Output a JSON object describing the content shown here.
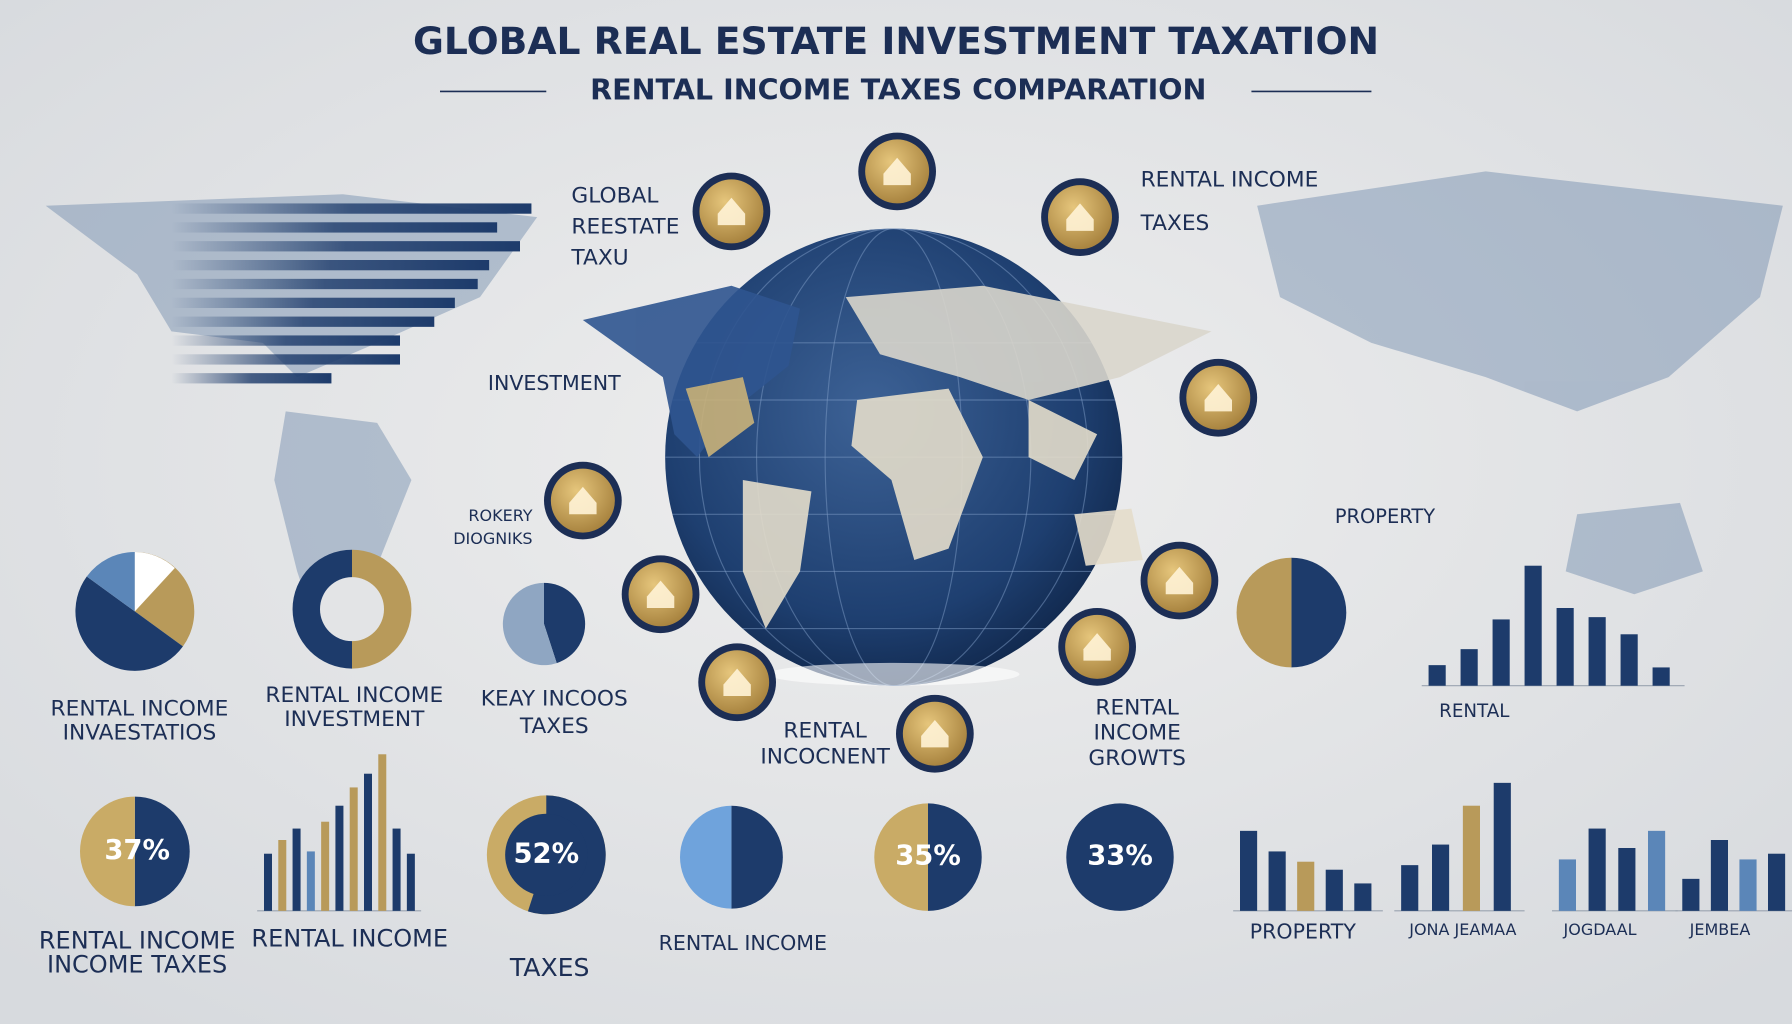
{
  "header": {
    "title": "GLOBAL REAL ESTATE INVESTMENT TAXATION",
    "subtitle": "RENTAL INCOME TAXES COMPARATION"
  },
  "callouts": [
    {
      "lines": [
        "GLOBAL",
        "REESTATE",
        "TAXU"
      ]
    },
    {
      "lines": [
        "RENTAL  INCOME",
        "TAXES"
      ]
    },
    {
      "lines": [
        "INVESTMENT"
      ]
    },
    {
      "lines": [
        "ROKERY",
        "DIOGNIKS"
      ]
    },
    {
      "lines": [
        "PROPERTY"
      ]
    }
  ],
  "section_captions": [
    {
      "lines": [
        "RENTAL INCOME",
        "INVAESTATIOS"
      ]
    },
    {
      "lines": [
        "RENTAL INCOME",
        "INVESTMENT"
      ]
    },
    {
      "lines": [
        "KEAY INCOOS",
        "TAXES"
      ]
    },
    {
      "lines": [
        "RENTAL",
        "INCOCNENT"
      ]
    },
    {
      "lines": [
        "RENTAL",
        "INCOME",
        "GROWTS"
      ]
    },
    {
      "lines": [
        "RENTAL"
      ]
    }
  ],
  "percent_badges": [
    "37%",
    "52%",
    "35%",
    "33%"
  ],
  "bottom_captions": [
    {
      "lines": [
        "RENTAL INCOME",
        "INCOME TAXES"
      ]
    },
    {
      "lines": [
        "RENTAL INCOME"
      ]
    },
    {
      "lines": [
        "TAXES"
      ]
    },
    {
      "lines": [
        "RENTAL INCOME"
      ]
    },
    {
      "lines": [
        "PROPERTY"
      ]
    },
    {
      "lines": [
        "JONA JEAMAA"
      ]
    },
    {
      "lines": [
        "JOGDAAL"
      ]
    },
    {
      "lines": [
        "JEMBEA"
      ]
    }
  ],
  "bar_charts": [
    {
      "values": [
        315,
        285,
        305,
        278,
        268,
        248,
        230,
        200,
        200,
        140
      ],
      "colors": [
        "#1d3b6b",
        "#1d3b6b",
        "#1d3b6b",
        "#1d3b6b",
        "#1d3b6b",
        "#1d3b6b",
        "#1d3b6b",
        "#1d3b6b",
        "#1d3b6b",
        "#1d3b6b"
      ]
    },
    {
      "values": [
        18,
        32,
        58,
        105,
        68,
        60,
        45,
        16
      ],
      "colors": [
        "#1d3b6b",
        "#1d3b6b",
        "#1d3b6b",
        "#1d3b6b",
        "#1d3b6b",
        "#1d3b6b",
        "#1d3b6b",
        "#1d3b6b"
      ]
    },
    {
      "values": [
        50,
        62,
        72,
        52,
        78,
        92,
        108,
        120,
        137,
        72,
        50
      ],
      "colors": [
        "#1d3b6b",
        "#b89a5a",
        "#1d3b6b",
        "#5b86b8",
        "#b89a5a",
        "#1d3b6b",
        "#b89a5a",
        "#1d3b6b",
        "#b89a5a",
        "#1d3b6b",
        "#1d3b6b"
      ]
    },
    {
      "values": [
        70,
        52,
        43,
        36,
        24
      ],
      "colors": [
        "#1d3b6b",
        "#1d3b6b",
        "#b89a5a",
        "#1d3b6b",
        "#1d3b6b"
      ]
    },
    {
      "values": [
        40,
        58,
        92,
        112
      ],
      "colors": [
        "#1d3b6b",
        "#1d3b6b",
        "#b89a5a",
        "#1d3b6b"
      ]
    },
    {
      "values": [
        45,
        72,
        55,
        70
      ],
      "colors": [
        "#5b86b8",
        "#1d3b6b",
        "#1d3b6b",
        "#5b86b8"
      ]
    },
    {
      "values": [
        28,
        62,
        45,
        50
      ],
      "colors": [
        "#1d3b6b",
        "#1d3b6b",
        "#5b86b8",
        "#1d3b6b"
      ]
    }
  ]
}
